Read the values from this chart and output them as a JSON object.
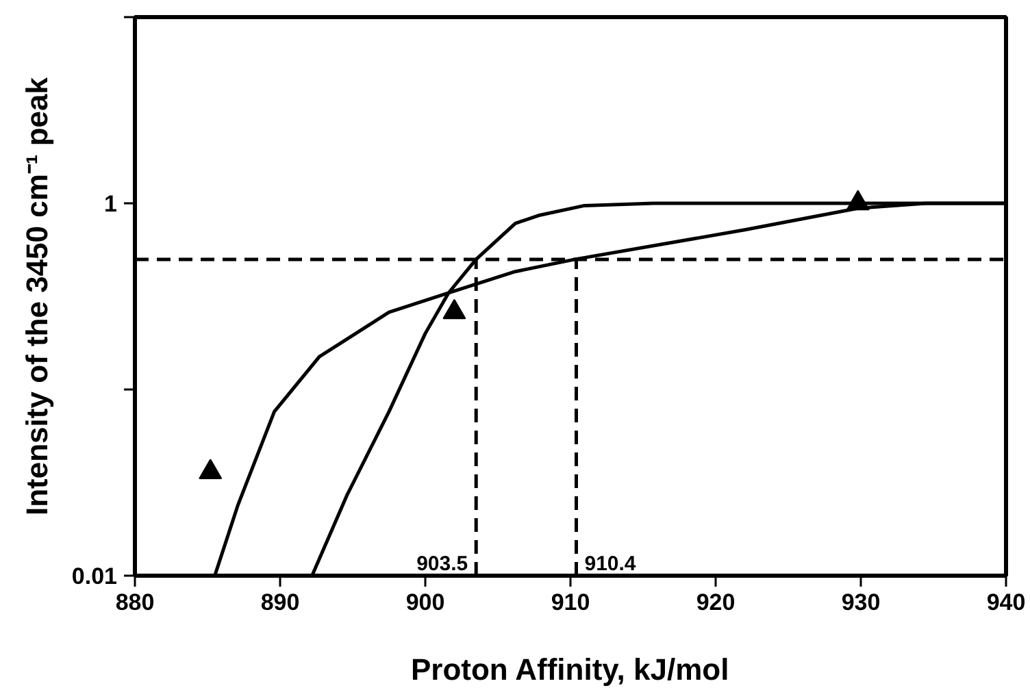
{
  "chart_data": {
    "type": "line",
    "xlabel": "Proton Affinity, kJ/mol",
    "ylabel": "Intensity of the 3450 cm⁻¹ peak",
    "xlim": [
      880,
      940
    ],
    "xticks": [
      880,
      890,
      900,
      910,
      920,
      930,
      940
    ],
    "ylim": [
      0.01,
      10
    ],
    "yticks": [
      0.01,
      {
        "value": 0.1,
        "label": null
      },
      1,
      {
        "value": 10,
        "label": null
      }
    ],
    "log": "y",
    "grid": false,
    "series": [
      {
        "color": "#000000",
        "line_style": "solid",
        "x": [
          892.2,
          894.6,
          897.5,
          900,
          901.6,
          903.5,
          906.2,
          907.8,
          910.9,
          915.7,
          940
        ],
        "values": [
          0.01,
          0.027,
          0.076,
          0.2,
          0.33,
          0.5,
          0.78,
          0.86,
          0.97,
          1.0,
          1.0
        ]
      },
      {
        "color": "#000000",
        "line_style": "solid",
        "x": [
          885.5,
          887.1,
          889.6,
          892.7,
          897.5,
          901.6,
          906.2,
          910.3,
          922,
          929.8,
          934.5,
          940
        ],
        "values": [
          0.01,
          0.024,
          0.076,
          0.15,
          0.26,
          0.33,
          0.43,
          0.5,
          0.72,
          0.94,
          1.0,
          1.0
        ]
      },
      {
        "type": "scatter",
        "color": "#000000",
        "marker": "triangle",
        "x": [
          885.2,
          902,
          929.8
        ],
        "values": [
          0.036,
          0.26,
          1.0
        ]
      },
      {
        "color": "#000000",
        "line_style": "dashed",
        "x": [
          903.5,
          903.5
        ],
        "values": [
          0.01,
          0.5
        ]
      },
      {
        "color": "#000000",
        "line_style": "dashed",
        "x": [
          910.4,
          910.4
        ],
        "values": [
          0.01,
          0.5
        ]
      }
    ],
    "ref_lines": [
      {
        "axis": "y",
        "value": 0.5,
        "label": null,
        "color": "#000000",
        "line_style": "dashed"
      }
    ],
    "annotations": [
      {
        "text": "903.5",
        "x": 903.5,
        "y": 0.01
      },
      {
        "text": "910.4",
        "x": 910.4,
        "y": 0.01
      }
    ]
  }
}
